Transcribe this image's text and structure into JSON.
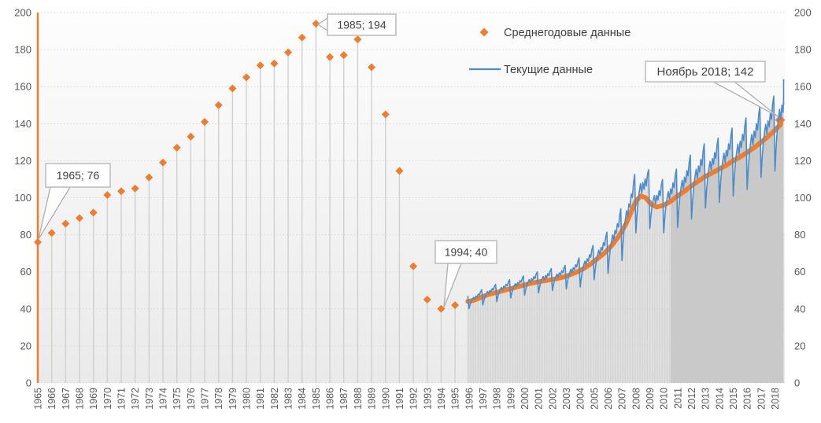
{
  "colors": {
    "average_series": "#ED7D31",
    "current_series": "#4D8BC9",
    "gridline": "#d6d6d6",
    "dropline": "#d0d0d0",
    "area_fill": "#c9c9c9",
    "axis_text": "#595959",
    "annotation_text": "#404040",
    "annotation_border": "#BFBFBF",
    "leader_line": "#AFAFAF"
  },
  "legend": {
    "items": [
      {
        "label": "Среднегодовые данные",
        "marker": "diamond-icon",
        "color": "#ED7D31"
      },
      {
        "label": "Текущие данные",
        "marker": "line-icon",
        "color": "#4D8BC9"
      }
    ]
  },
  "axes": {
    "y_ticks": [
      "0",
      "20",
      "40",
      "60",
      "80",
      "100",
      "120",
      "140",
      "160",
      "180",
      "200"
    ],
    "x_ticks": [
      "1965",
      "1966",
      "1967",
      "1968",
      "1969",
      "1970",
      "1971",
      "1972",
      "1973",
      "1974",
      "1975",
      "1976",
      "1977",
      "1978",
      "1979",
      "1980",
      "1981",
      "1982",
      "1983",
      "1984",
      "1985",
      "1986",
      "1987",
      "1988",
      "1989",
      "1990",
      "1991",
      "1992",
      "1993",
      "1994",
      "1995",
      "1996",
      "1997",
      "1998",
      "1999",
      "2000",
      "2001",
      "2002",
      "2003",
      "2004",
      "2005",
      "2006",
      "2007",
      "2008",
      "2009",
      "2010",
      "2011",
      "2012",
      "2013",
      "2014",
      "2015",
      "2016",
      "2017",
      "2018"
    ]
  },
  "chart_data": {
    "type": "combo",
    "title": "",
    "ylim": [
      0,
      200
    ],
    "y_tick_step": 20,
    "grid": "horizontal-dotted",
    "legend_position": "top-right-inside",
    "series": [
      {
        "name": "Среднегодовые данные",
        "type": "scatter",
        "marker": "diamond",
        "color": "#ED7D31",
        "annual_years": [
          1965,
          1966,
          1967,
          1968,
          1969,
          1970,
          1971,
          1972,
          1973,
          1974,
          1975,
          1976,
          1977,
          1978,
          1979,
          1980,
          1981,
          1982,
          1983,
          1984,
          1985,
          1986,
          1987,
          1988,
          1989,
          1990,
          1991,
          1992,
          1993,
          1994,
          1995
        ],
        "annual_values": [
          76,
          81,
          86,
          89,
          92,
          101.5,
          103.5,
          105,
          111,
          119,
          127,
          133,
          141,
          150,
          159,
          165,
          171.5,
          172.5,
          178.5,
          186.5,
          194,
          176,
          177,
          185.5,
          170.5,
          145,
          114.5,
          63,
          45,
          40,
          42
        ],
        "monthly_average_anchors": [
          [
            1995.92,
            44
          ],
          [
            1996.3,
            44.5
          ],
          [
            1996.8,
            46
          ],
          [
            1997.3,
            47.5
          ],
          [
            1997.8,
            48.5
          ],
          [
            1998.3,
            49.5
          ],
          [
            1998.8,
            50.5
          ],
          [
            1999.3,
            51.5
          ],
          [
            1999.8,
            52.5
          ],
          [
            2000.3,
            53.5
          ],
          [
            2000.8,
            54.3
          ],
          [
            2001.3,
            55
          ],
          [
            2001.8,
            55.6
          ],
          [
            2002.3,
            56.3
          ],
          [
            2002.8,
            57.2
          ],
          [
            2003.3,
            58.5
          ],
          [
            2003.8,
            60
          ],
          [
            2004.3,
            62
          ],
          [
            2004.8,
            64.5
          ],
          [
            2005.3,
            67.5
          ],
          [
            2005.8,
            70.5
          ],
          [
            2006.3,
            74.5
          ],
          [
            2006.8,
            79.5
          ],
          [
            2007.3,
            86
          ],
          [
            2007.7,
            93
          ],
          [
            2008.0,
            98
          ],
          [
            2008.35,
            101
          ],
          [
            2008.7,
            100
          ],
          [
            2009.1,
            96.5
          ],
          [
            2009.5,
            95
          ],
          [
            2010.0,
            96
          ],
          [
            2010.5,
            98
          ],
          [
            2011.0,
            101
          ],
          [
            2011.5,
            103.5
          ],
          [
            2012.0,
            106.5
          ],
          [
            2012.5,
            109
          ],
          [
            2013.0,
            111.5
          ],
          [
            2013.5,
            113.5
          ],
          [
            2014.0,
            115.5
          ],
          [
            2014.5,
            117.5
          ],
          [
            2015.0,
            120
          ],
          [
            2015.5,
            122
          ],
          [
            2016.0,
            124.5
          ],
          [
            2016.5,
            127
          ],
          [
            2017.0,
            130
          ],
          [
            2017.5,
            133
          ],
          [
            2018.0,
            136.5
          ],
          [
            2018.4,
            139.5
          ],
          [
            2018.83,
            142
          ]
        ]
      },
      {
        "name": "Текущие данные",
        "type": "line",
        "color": "#4D8BC9",
        "start_year_month": [
          1995,
          11
        ],
        "end_year_month": [
          2018,
          11
        ],
        "seasonal_pattern": [
          -1.0,
          -0.45,
          -0.05,
          0.2,
          0.4,
          0.1,
          0.45,
          0.25,
          0.6,
          0.4,
          0.8,
          1.0
        ],
        "amplitude_years": [
          1995,
          1996,
          1997,
          1998,
          1999,
          2000,
          2001,
          2002,
          2003,
          2004,
          2005,
          2006,
          2007,
          2008,
          2009,
          2010,
          2011,
          2012,
          2013,
          2014,
          2015,
          2016,
          2017,
          2018
        ],
        "amplitudes": [
          3,
          4,
          4.5,
          5,
          5,
          5.5,
          6,
          6,
          7,
          9,
          10,
          13,
          16,
          17,
          14,
          15,
          17,
          18,
          17,
          18,
          19,
          20,
          19,
          22
        ]
      }
    ],
    "droplines": {
      "annual_years": "1966-1995",
      "monthly_until": 2010.55,
      "solid_fill_from": 2010.5,
      "orange_full_height_line_at": 1965
    },
    "annotations": [
      {
        "text": "1965; 76",
        "x": 1965,
        "y": 76
      },
      {
        "text": "1985; 194",
        "x": 1985,
        "y": 194
      },
      {
        "text": "1994; 40",
        "x": 1994,
        "y": 40
      },
      {
        "text": "Ноябрь 2018; 142",
        "x": 2018.83,
        "y": 142
      }
    ]
  }
}
